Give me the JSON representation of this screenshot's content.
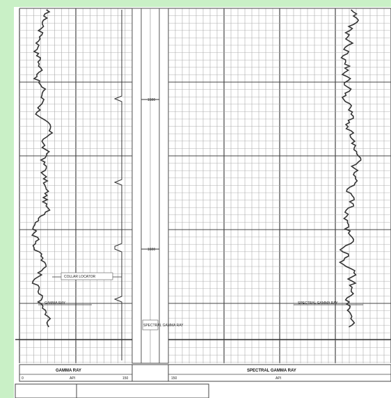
{
  "header": {
    "left_track_title": "GAMMA RAY",
    "left_track_unit": "API",
    "left_scale_min": "0",
    "left_scale_max": "150",
    "right_track_title": "SPECTRAL GAMMA RAY",
    "right_track_unit": "API",
    "right_scale_min": "150"
  },
  "depth_track": {
    "depth_marks": [
      "1500",
      "1600"
    ],
    "depth_note": "SPECTRAL GAMMA RAY"
  },
  "annotations": {
    "collar_label": "COLLAR LOCATOR",
    "gamma_label": "GAMMA RAY",
    "spectral_label": "SPECTRAL GAMMA RAY"
  },
  "colors": {
    "grid": "#9a9a9a",
    "curve": "#333333",
    "border": "#c9f0c6"
  }
}
